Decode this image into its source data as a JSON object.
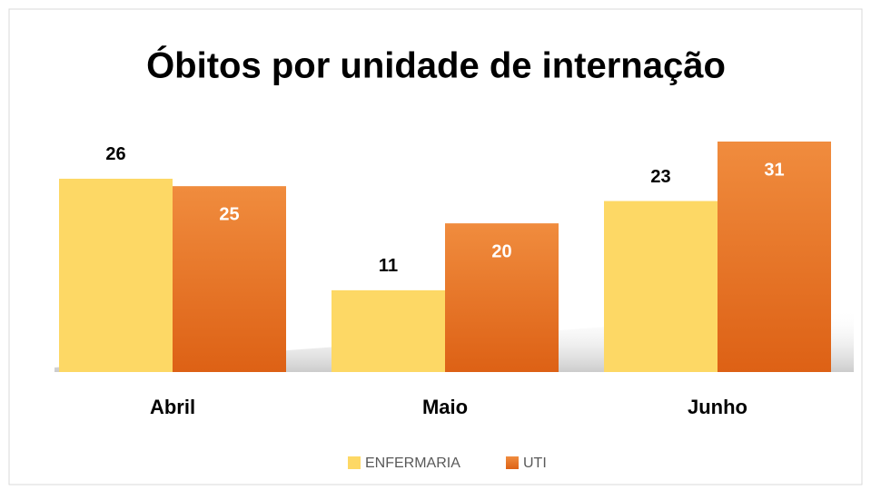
{
  "chart_data": {
    "type": "bar",
    "title": "Óbitos por unidade de internação",
    "categories": [
      "Abril",
      "Maio",
      "Junho"
    ],
    "series": [
      {
        "name": "ENFERMARIA",
        "color": "#fdd865",
        "values": [
          26,
          11,
          23
        ]
      },
      {
        "name": "UTI",
        "color": "#e8742a",
        "values": [
          25,
          20,
          31
        ]
      }
    ],
    "legend": "bottom"
  }
}
